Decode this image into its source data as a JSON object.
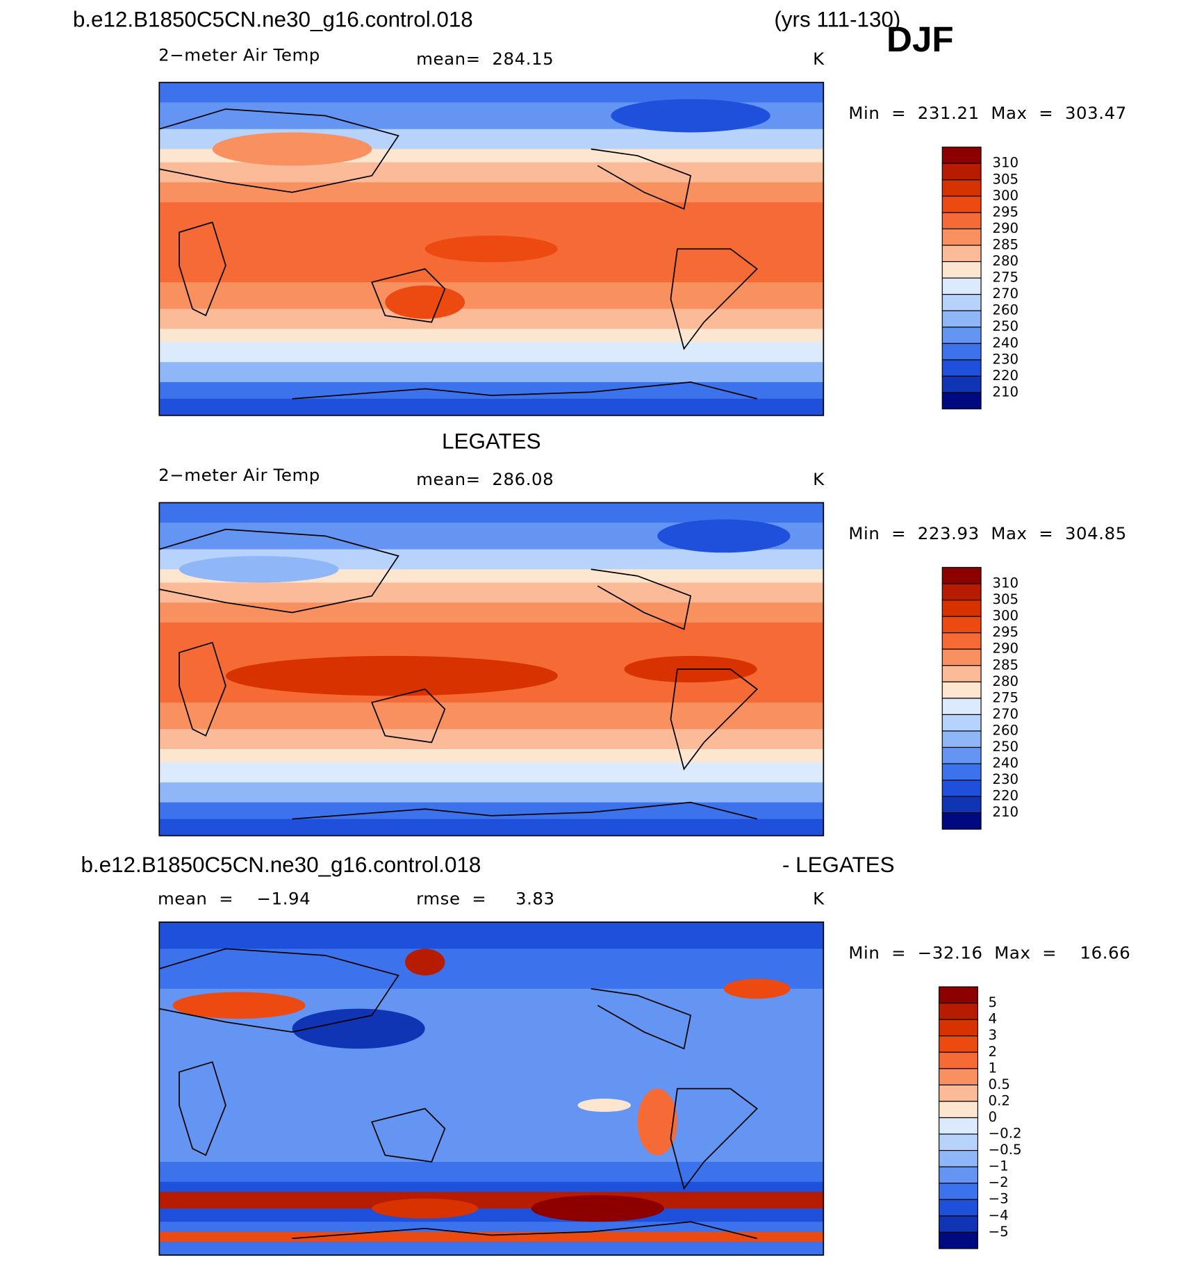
{
  "header": {
    "case": "b.e12.B1850C5CN.ne30_g16.control.018",
    "years": "(yrs 111-130)",
    "season": "DJF"
  },
  "panels": [
    {
      "variable": "2−meter Air Temp",
      "stat1": "mean=  284.15",
      "units": "K",
      "range": "Min  =  231.21  Max  =  303.47",
      "levels": [
        "310",
        "305",
        "300",
        "295",
        "290",
        "285",
        "280",
        "275",
        "270",
        "260",
        "250",
        "240",
        "230",
        "220",
        "210"
      ]
    },
    {
      "title": "LEGATES",
      "variable": "2−meter Air Temp",
      "stat1": "mean=  286.08",
      "units": "K",
      "range": "Min  =  223.93  Max  =  304.85",
      "levels": [
        "310",
        "305",
        "300",
        "295",
        "290",
        "285",
        "280",
        "275",
        "270",
        "260",
        "250",
        "240",
        "230",
        "220",
        "210"
      ]
    },
    {
      "title_left": "b.e12.B1850C5CN.ne30_g16.control.018",
      "title_right": "- LEGATES",
      "stat1": "mean  =    −1.94",
      "stat2": "rmse  =     3.83",
      "units": "K",
      "range": "Min  =  −32.16  Max  =    16.66",
      "levels": [
        "5",
        "4",
        "3",
        "2",
        "1",
        "0.5",
        "0.2",
        "0",
        "−0.2",
        "−0.5",
        "−1",
        "−2",
        "−3",
        "−4",
        "−5"
      ]
    }
  ],
  "colorbar_colors": [
    "#8c0000",
    "#b81c00",
    "#d83200",
    "#ec4a10",
    "#f56a35",
    "#f99060",
    "#fcbb98",
    "#fde6d0",
    "#dbeafc",
    "#b7d2fb",
    "#8fb6f7",
    "#6495f2",
    "#3c73ec",
    "#1f50dc",
    "#0f34b4",
    "#000a80"
  ]
}
